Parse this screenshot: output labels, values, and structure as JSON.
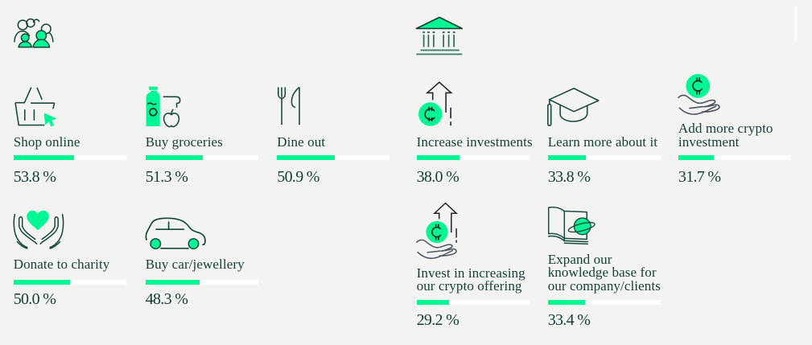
{
  "page": {
    "background_color": "#f3f4f2",
    "accent_green": "#00f593",
    "text_color": "#113f38",
    "bar_track_color": "#ffffff"
  },
  "chart_data": {
    "type": "bar",
    "title": "",
    "unit": "%",
    "bar_max_percent": 100,
    "groups": [
      {
        "group_icon": "people-crowd-icon",
        "categories": [
          "Shop online",
          "Buy groceries",
          "Dine out",
          "Donate to charity",
          "Buy car/jewellery"
        ],
        "values": [
          53.8,
          51.3,
          50.9,
          50.0,
          48.3
        ]
      },
      {
        "group_icon": "bank-icon",
        "categories": [
          "Increase investments",
          "Learn more about it",
          "Add more crypto investment",
          "Invest in increasing our crypto offering",
          "Expand our knowledge base for our company/clients"
        ],
        "values": [
          38.0,
          33.8,
          31.7,
          29.2,
          33.4
        ]
      }
    ]
  },
  "groups": [
    {
      "icon": "people-crowd-icon",
      "items": [
        {
          "label": "Shop online",
          "icon": "shopping-basket-cursor-icon",
          "percent": 53.8,
          "percent_label": "53.8 %"
        },
        {
          "label": "Buy groceries",
          "icon": "bottle-apple-icon",
          "percent": 51.3,
          "percent_label": "51.3 %"
        },
        {
          "label": "Dine out",
          "icon": "fork-knife-icon",
          "percent": 50.9,
          "percent_label": "50.9 %"
        },
        {
          "label": "Donate to charity",
          "icon": "hands-heart-icon",
          "percent": 50.0,
          "percent_label": "50.0 %"
        },
        {
          "label": "Buy car/jewellery",
          "icon": "car-icon",
          "percent": 48.3,
          "percent_label": "48.3 %"
        }
      ]
    },
    {
      "icon": "bank-icon",
      "items": [
        {
          "label": "Increase investments",
          "icon": "arrow-up-coin-icon",
          "percent": 38.0,
          "percent_label": "38.0 %"
        },
        {
          "label": "Learn more about it",
          "icon": "graduation-cap-icon",
          "percent": 33.8,
          "percent_label": "33.8 %"
        },
        {
          "label": "Add more crypto\ninvestment",
          "icon": "hand-coin-icon",
          "percent": 31.7,
          "percent_label": "31.7 %"
        },
        {
          "label": "Invest in increasing\nour crypto offering",
          "icon": "hand-coin-arrow-icon",
          "percent": 29.2,
          "percent_label": "29.2 %"
        },
        {
          "label": "Expand our\nknowledge base for\nour company/clients",
          "icon": "book-planet-icon",
          "percent": 33.4,
          "percent_label": "33.4 %"
        }
      ]
    }
  ]
}
